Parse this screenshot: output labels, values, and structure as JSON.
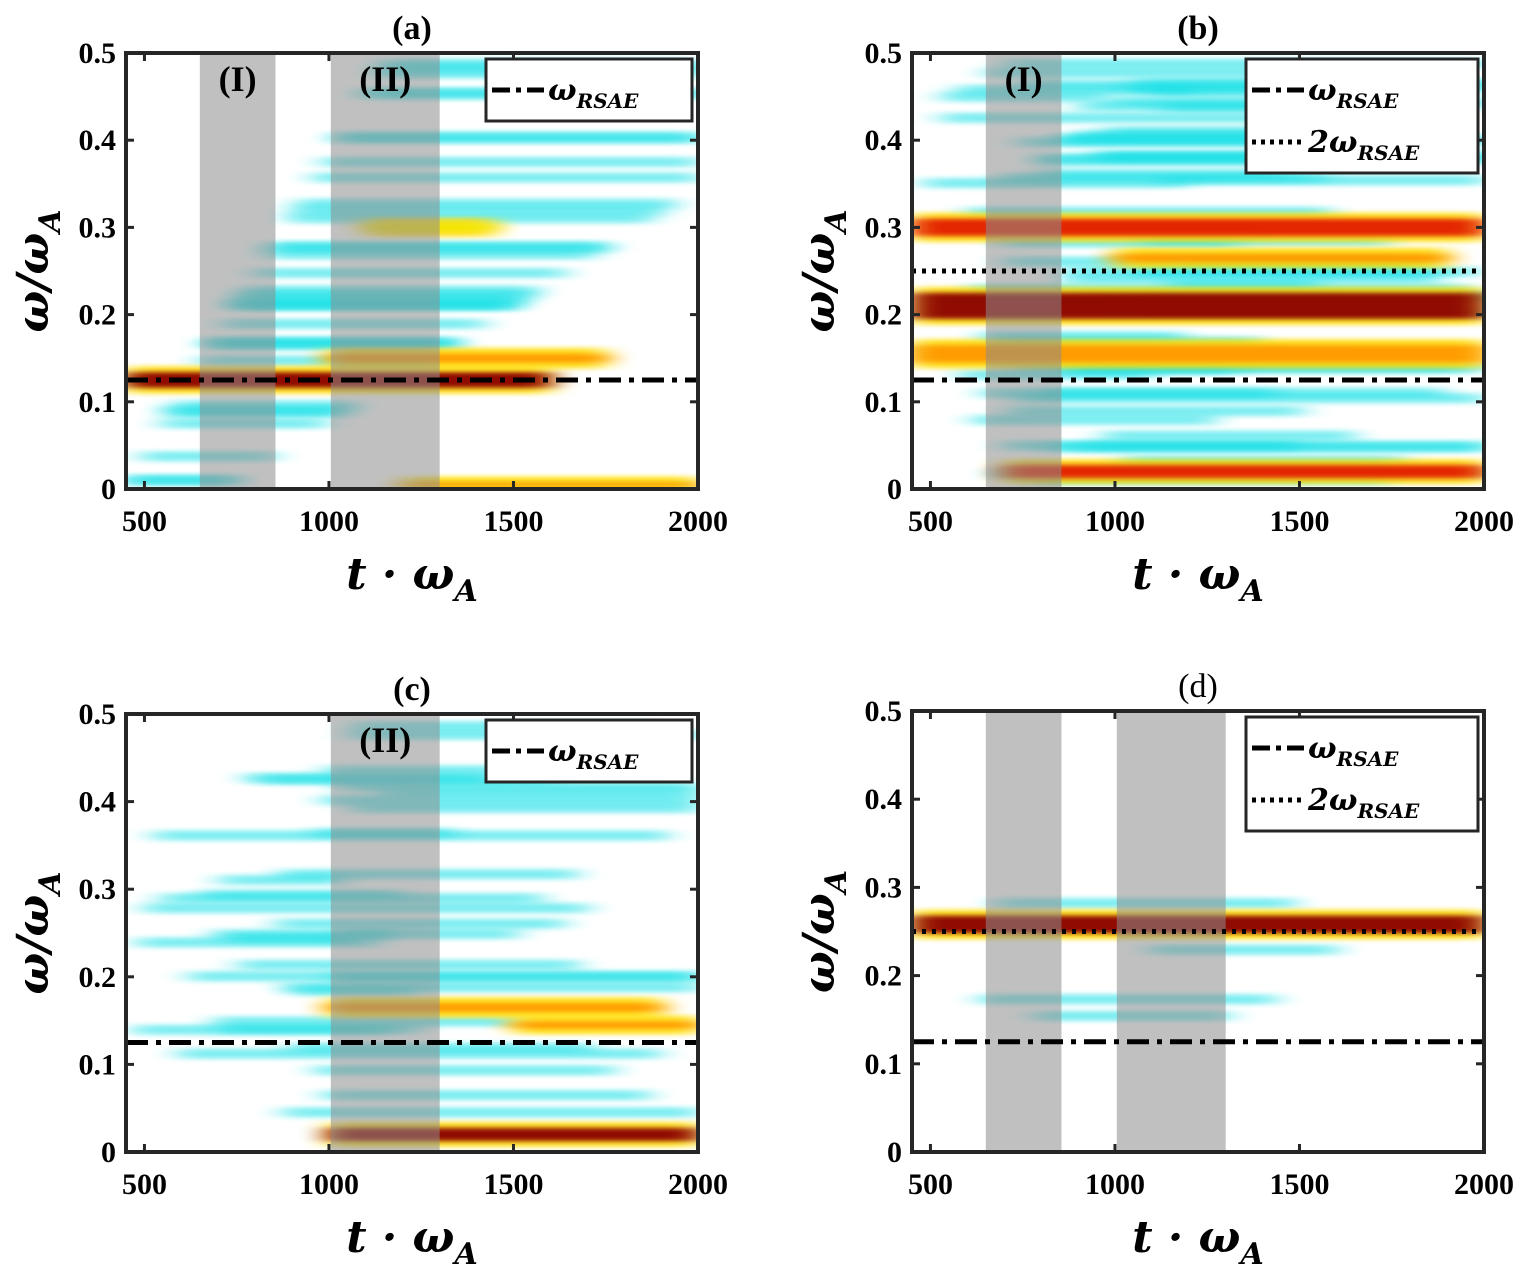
{
  "chart_data": [
    {
      "type": "heatmap",
      "title": "(a)",
      "title_bold": true,
      "xlabel": "t · ω_A",
      "ylabel": "ω/ω_A",
      "xlim": [
        450,
        2000
      ],
      "ylim": [
        0,
        0.5
      ],
      "xticks": [
        "500",
        "1000",
        "1500",
        "2000"
      ],
      "yticks": [
        "0",
        "0.1",
        "0.2",
        "0.3",
        "0.4",
        "0.5"
      ],
      "shaded_intervals": [
        {
          "label": "(I)",
          "x": [
            650,
            855
          ]
        },
        {
          "label": "(II)",
          "x": [
            1005,
            1300
          ]
        }
      ],
      "lines": [
        {
          "name": "ω_RSAE",
          "style": "dash-dot",
          "y": 0.125
        }
      ],
      "legend": "top-right",
      "intensity_bands": [
        {
          "y": 0.125,
          "height": 0.018,
          "level": "high",
          "x": [
            450,
            1600
          ]
        },
        {
          "y": 0.15,
          "height": 0.01,
          "level": "medium",
          "x": [
            1000,
            1750
          ]
        },
        {
          "y": 0.3,
          "height": 0.008,
          "level": "low-medium",
          "x": [
            1100,
            1450
          ]
        },
        {
          "y": 0.005,
          "height": 0.005,
          "level": "medium",
          "x": [
            1200,
            2000
          ]
        }
      ]
    },
    {
      "type": "heatmap",
      "title": "(b)",
      "title_bold": true,
      "xlabel": "t · ω_A",
      "ylabel": "ω/ω_A",
      "xlim": [
        450,
        2000
      ],
      "ylim": [
        0,
        0.5
      ],
      "xticks": [
        "500",
        "1000",
        "1500",
        "2000"
      ],
      "yticks": [
        "0",
        "0.1",
        "0.2",
        "0.3",
        "0.4",
        "0.5"
      ],
      "shaded_intervals": [
        {
          "label": "(I)",
          "x": [
            650,
            855
          ]
        }
      ],
      "lines": [
        {
          "name": "ω_RSAE",
          "style": "dash-dot",
          "y": 0.125
        },
        {
          "name": "2ω_RSAE",
          "style": "dotted",
          "y": 0.25
        }
      ],
      "legend": "top-right",
      "intensity_bands": [
        {
          "y": 0.21,
          "height": 0.03,
          "level": "high",
          "x": [
            450,
            2000
          ]
        },
        {
          "y": 0.3,
          "height": 0.02,
          "level": "medium-high",
          "x": [
            450,
            2000
          ]
        },
        {
          "y": 0.265,
          "height": 0.01,
          "level": "medium",
          "x": [
            1000,
            1900
          ]
        },
        {
          "y": 0.155,
          "height": 0.02,
          "level": "medium",
          "x": [
            450,
            2000
          ]
        },
        {
          "y": 0.02,
          "height": 0.015,
          "level": "medium-high",
          "x": [
            700,
            2000
          ]
        }
      ]
    },
    {
      "type": "heatmap",
      "title": "(c)",
      "title_bold": true,
      "xlabel": "t · ω_A",
      "ylabel": "ω/ω_A",
      "xlim": [
        450,
        2000
      ],
      "ylim": [
        0,
        0.5
      ],
      "xticks": [
        "500",
        "1000",
        "1500",
        "2000"
      ],
      "yticks": [
        "0",
        "0.1",
        "0.2",
        "0.3",
        "0.4",
        "0.5"
      ],
      "shaded_intervals": [
        {
          "label": "(II)",
          "x": [
            1005,
            1300
          ]
        }
      ],
      "lines": [
        {
          "name": "ω_RSAE",
          "style": "dash-dot",
          "y": 0.125
        }
      ],
      "legend": "top-right",
      "intensity_bands": [
        {
          "y": 0.165,
          "height": 0.01,
          "level": "medium",
          "x": [
            1000,
            1900
          ]
        },
        {
          "y": 0.145,
          "height": 0.008,
          "level": "medium",
          "x": [
            1500,
            2000
          ]
        },
        {
          "y": 0.02,
          "height": 0.015,
          "level": "high",
          "x": [
            1000,
            2000
          ]
        }
      ]
    },
    {
      "type": "heatmap",
      "title": "(d)",
      "title_bold": false,
      "xlabel": "t · ω_A",
      "ylabel": "ω/ω_A",
      "xlim": [
        450,
        2000
      ],
      "ylim": [
        0,
        0.5
      ],
      "xticks": [
        "500",
        "1000",
        "1500",
        "2000"
      ],
      "yticks": [
        "0",
        "0.1",
        "0.2",
        "0.3",
        "0.4",
        "0.5"
      ],
      "shaded_intervals": [
        {
          "label": "",
          "x": [
            650,
            855
          ]
        },
        {
          "label": "",
          "x": [
            1005,
            1300
          ]
        }
      ],
      "lines": [
        {
          "name": "ω_RSAE",
          "style": "dash-dot",
          "y": 0.125
        },
        {
          "name": "2ω_RSAE",
          "style": "dotted",
          "y": 0.25
        }
      ],
      "legend": "top-right",
      "intensity_bands": [
        {
          "y": 0.258,
          "height": 0.02,
          "level": "high",
          "x": [
            450,
            2000
          ]
        }
      ]
    }
  ]
}
